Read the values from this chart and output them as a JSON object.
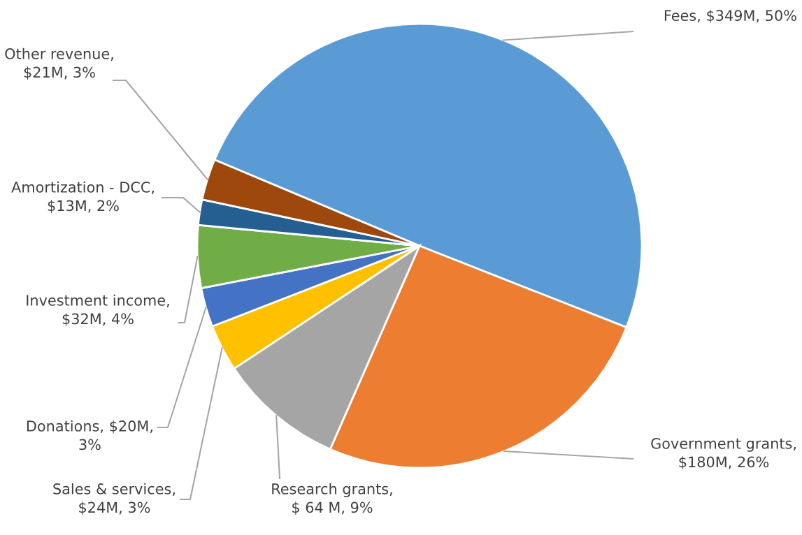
{
  "chart_data": {
    "type": "pie",
    "categories": [
      "Fees, $349M, 50%",
      "Government grants,\n$180M, 26%",
      "Research grants,\n$ 64 M, 9%",
      "Sales & services,\n$24M, 3%",
      "Donations, $20M,\n3%",
      "Investment income,\n$32M, 4%",
      "Amortization - DCC,\n$13M, 2%",
      "Other revenue,\n$21M, 3%"
    ],
    "values": [
      349,
      180,
      64,
      24,
      20,
      32,
      13,
      21
    ],
    "colors": [
      "#5b9bd5",
      "#ed7d31",
      "#a5a5a5",
      "#ffc000",
      "#4472c4",
      "#70ad47",
      "#255e91",
      "#9e480e"
    ]
  }
}
